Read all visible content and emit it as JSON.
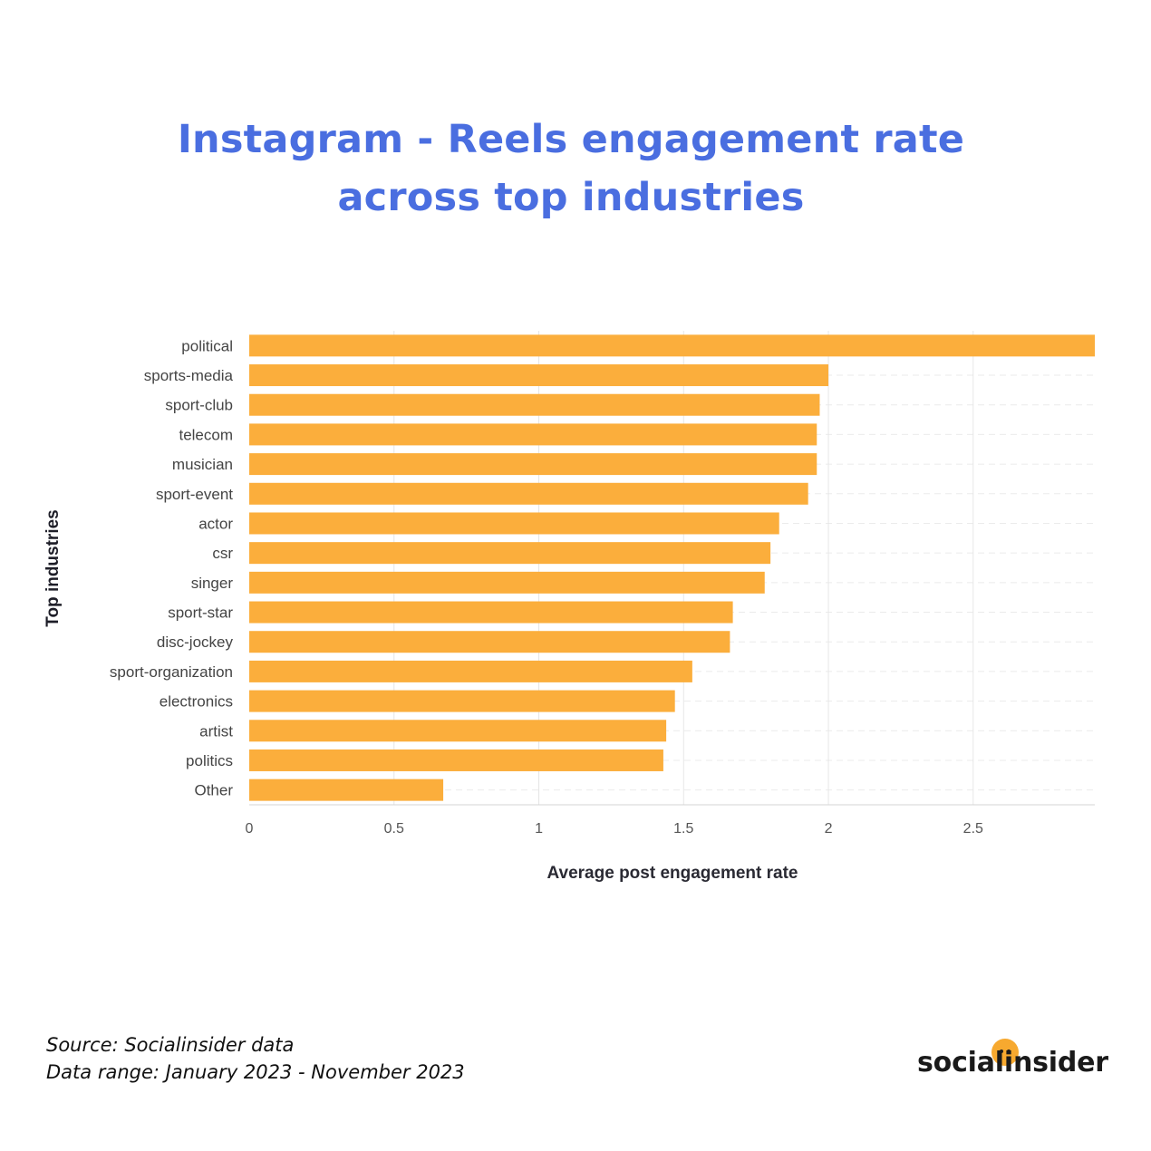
{
  "title": {
    "line1": "Instagram - Reels engagement rate",
    "line2": "across top industries"
  },
  "footer": {
    "source": "Source: Socialinsider data",
    "range": "Data range: January 2023 - November 2023"
  },
  "logo": {
    "text": "socialinsider"
  },
  "colors": {
    "title": "#4a6ee0",
    "bar": "#fbae3c",
    "logo_dot": "#f7a92f"
  },
  "chart_data": {
    "type": "bar",
    "orientation": "horizontal",
    "title": "Instagram - Reels engagement rate across top industries",
    "xlabel": "Average post engagement rate",
    "ylabel": "Top industries",
    "categories": [
      "political",
      "sports-media",
      "sport-club",
      "telecom",
      "musician",
      "sport-event",
      "actor",
      "csr",
      "singer",
      "sport-star",
      "disc-jockey",
      "sport-organization",
      "electronics",
      "artist",
      "politics",
      "Other"
    ],
    "values": [
      2.92,
      2.0,
      1.97,
      1.96,
      1.96,
      1.93,
      1.83,
      1.8,
      1.78,
      1.67,
      1.66,
      1.53,
      1.47,
      1.44,
      1.43,
      0.67
    ],
    "xlim": [
      0,
      2.92
    ],
    "xticks": [
      0,
      0.5,
      1,
      1.5,
      2,
      2.5
    ],
    "xtick_labels": [
      "0",
      "0.5",
      "1",
      "1.5",
      "2",
      "2.5"
    ],
    "grid": true,
    "legend": "none"
  }
}
